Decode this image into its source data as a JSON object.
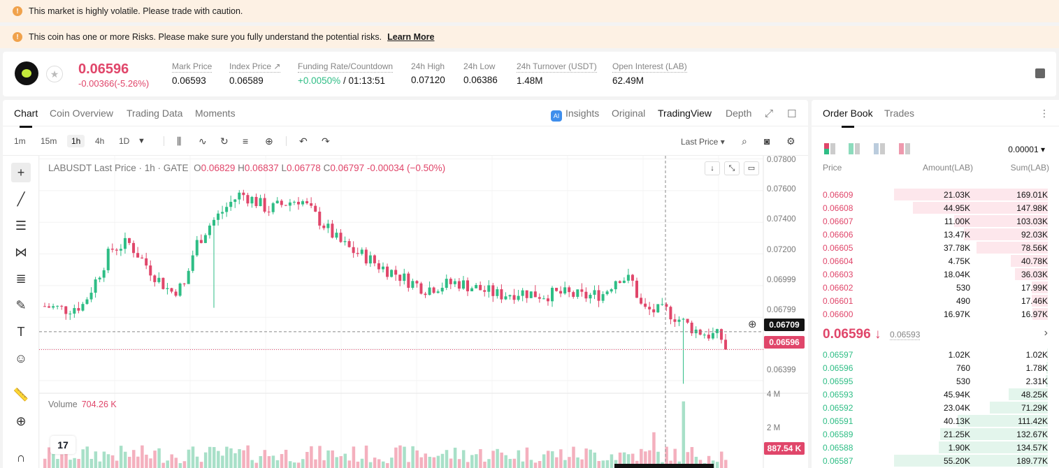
{
  "banners": {
    "volatile": "This market is highly volatile. Please trade with caution.",
    "risk": "This coin has one or more Risks. Please make sure you fully understand the potential risks.",
    "learn_more": "Learn More"
  },
  "ticker": {
    "last_price": "0.06596",
    "change": "-0.00366(-5.26%)",
    "stats": [
      {
        "label": "Mark Price",
        "value": "0.06593"
      },
      {
        "label": "Index Price ↗",
        "value": "0.06589"
      },
      {
        "label": "Funding Rate/Countdown",
        "value_green": "+0.0050%",
        "value": " / 01:13:51"
      },
      {
        "label": "24h High",
        "value": "0.07120"
      },
      {
        "label": "24h Low",
        "value": "0.06386"
      },
      {
        "label": "24h Turnover (USDT)",
        "value": "1.48M"
      },
      {
        "label": "Open Interest (LAB)",
        "value": "62.49M"
      }
    ]
  },
  "chart_tabs": [
    "Chart",
    "Coin Overview",
    "Trading Data",
    "Moments"
  ],
  "view_tabs": {
    "insights": "Insights",
    "original": "Original",
    "tradingview": "TradingView",
    "depth": "Depth"
  },
  "intervals": [
    "1m",
    "15m",
    "1h",
    "4h",
    "1D"
  ],
  "price_type": "Last Price",
  "legend": {
    "symbol": "LABUSDT Last Price · 1h · GATE",
    "o_label": "O",
    "o": "0.06829",
    "h_label": "H",
    "h": "0.06837",
    "l_label": "L",
    "l": "0.06778",
    "c_label": "C",
    "c": "0.06797",
    "chg": "-0.00034 (−0.50%)"
  },
  "volume_legend": {
    "label": "Volume",
    "value": "704.26 K"
  },
  "price_labels": [
    "0.07800",
    "0.07600",
    "0.07400",
    "0.07200",
    "0.06999",
    "0.06799",
    "0.06399"
  ],
  "volume_labels": [
    "4 M",
    "2 M"
  ],
  "crosshair_price": "0.06709",
  "current_price_tag": "0.06596",
  "volume_tag": "887.54 K",
  "colors": {
    "up": "#2ebd85",
    "down": "#e0466a",
    "up_vol": "#a8e0c8",
    "down_vol": "#f4b0be"
  },
  "chart_data": {
    "type": "candlestick",
    "title": "LABUSDT Last Price · 1h · GATE",
    "ylim": [
      0.0632,
      0.0782
    ],
    "volume_ylim": [
      0,
      4.6
    ],
    "candles": [],
    "volume": []
  },
  "order_book": {
    "tabs": [
      "Order Book",
      "Trades"
    ],
    "precision": "0.00001",
    "headers": {
      "price": "Price",
      "amount": "Amount(LAB)",
      "sum": "Sum(LAB)"
    },
    "asks": [
      {
        "price": "0.06609",
        "amount": "21.03K",
        "sum": "169.01K",
        "depth": 1.0
      },
      {
        "price": "0.06608",
        "amount": "44.95K",
        "sum": "147.98K",
        "depth": 0.875
      },
      {
        "price": "0.06607",
        "amount": "11.00K",
        "sum": "103.03K",
        "depth": 0.61
      },
      {
        "price": "0.06606",
        "amount": "13.47K",
        "sum": "92.03K",
        "depth": 0.545
      },
      {
        "price": "0.06605",
        "amount": "37.78K",
        "sum": "78.56K",
        "depth": 0.465
      },
      {
        "price": "0.06604",
        "amount": "4.75K",
        "sum": "40.78K",
        "depth": 0.241
      },
      {
        "price": "0.06603",
        "amount": "18.04K",
        "sum": "36.03K",
        "depth": 0.213
      },
      {
        "price": "0.06602",
        "amount": "530",
        "sum": "17.99K",
        "depth": 0.106
      },
      {
        "price": "0.06601",
        "amount": "490",
        "sum": "17.46K",
        "depth": 0.103
      },
      {
        "price": "0.06600",
        "amount": "16.97K",
        "sum": "16.97K",
        "depth": 0.1
      }
    ],
    "mid_price": "0.06596 ↓",
    "mark_price": "0.06593",
    "bids": [
      {
        "price": "0.06597",
        "amount": "1.02K",
        "sum": "1.02K",
        "depth": 0.005
      },
      {
        "price": "0.06596",
        "amount": "760",
        "sum": "1.78K",
        "depth": 0.009
      },
      {
        "price": "0.06595",
        "amount": "530",
        "sum": "2.31K",
        "depth": 0.012
      },
      {
        "price": "0.06593",
        "amount": "45.94K",
        "sum": "48.25K",
        "depth": 0.254
      },
      {
        "price": "0.06592",
        "amount": "23.04K",
        "sum": "71.29K",
        "depth": 0.376
      },
      {
        "price": "0.06591",
        "amount": "40.13K",
        "sum": "111.42K",
        "depth": 0.587
      },
      {
        "price": "0.06589",
        "amount": "21.25K",
        "sum": "132.67K",
        "depth": 0.699
      },
      {
        "price": "0.06588",
        "amount": "1.90K",
        "sum": "134.57K",
        "depth": 0.709
      },
      {
        "price": "0.06587",
        "amount": "55.20K",
        "sum": "189.77K",
        "depth": 1.0
      }
    ]
  }
}
